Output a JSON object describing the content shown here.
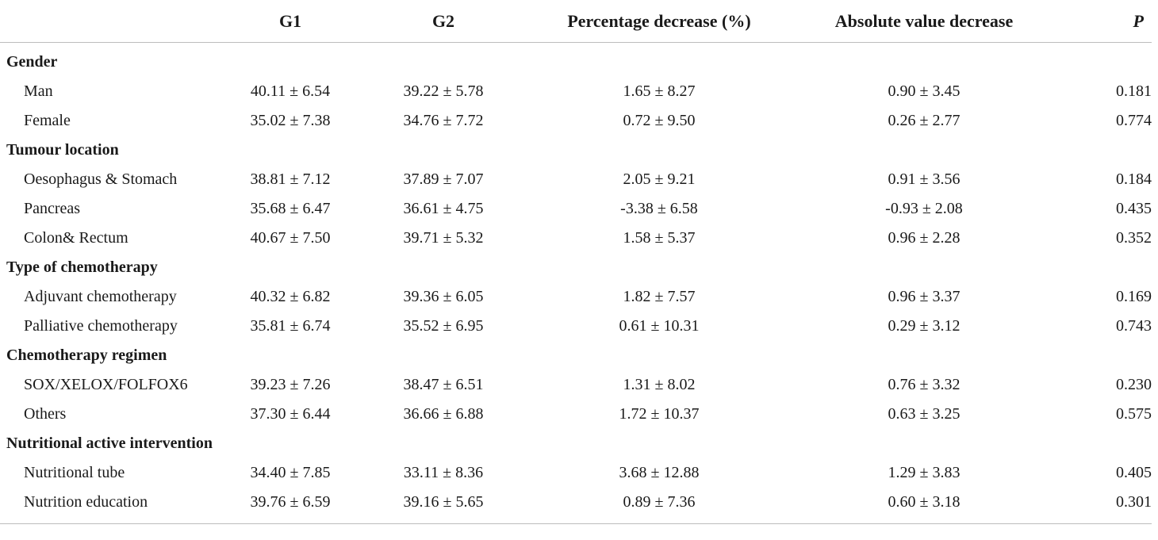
{
  "table": {
    "headers": [
      "",
      "G1",
      "G2",
      "Percentage decrease (%)",
      "Absolute value decrease",
      "P"
    ],
    "groups": [
      {
        "title": "Gender",
        "rows": [
          {
            "label": "Man",
            "g1": "40.11 ± 6.54",
            "g2": "39.22 ± 5.78",
            "pct": "1.65 ± 8.27",
            "abs": "0.90 ± 3.45",
            "p": "0.181"
          },
          {
            "label": "Female",
            "g1": "35.02 ± 7.38",
            "g2": "34.76 ± 7.72",
            "pct": "0.72 ± 9.50",
            "abs": "0.26 ± 2.77",
            "p": "0.774"
          }
        ]
      },
      {
        "title": "Tumour location",
        "rows": [
          {
            "label": "Oesophagus & Stomach",
            "g1": "38.81 ± 7.12",
            "g2": "37.89 ± 7.07",
            "pct": "2.05 ± 9.21",
            "abs": "0.91 ± 3.56",
            "p": "0.184"
          },
          {
            "label": "Pancreas",
            "g1": "35.68 ± 6.47",
            "g2": "36.61 ± 4.75",
            "pct": "-3.38 ± 6.58",
            "abs": "-0.93 ± 2.08",
            "p": "0.435"
          },
          {
            "label": "Colon& Rectum",
            "g1": "40.67 ± 7.50",
            "g2": "39.71 ± 5.32",
            "pct": "1.58 ± 5.37",
            "abs": "0.96 ± 2.28",
            "p": "0.352"
          }
        ]
      },
      {
        "title": "Type of chemotherapy",
        "rows": [
          {
            "label": "Adjuvant chemotherapy",
            "g1": "40.32 ± 6.82",
            "g2": "39.36 ± 6.05",
            "pct": "1.82 ± 7.57",
            "abs": "0.96 ± 3.37",
            "p": "0.169"
          },
          {
            "label": "Palliative chemotherapy",
            "g1": "35.81 ± 6.74",
            "g2": "35.52 ± 6.95",
            "pct": "0.61 ± 10.31",
            "abs": "0.29 ± 3.12",
            "p": "0.743"
          }
        ]
      },
      {
        "title": "Chemotherapy regimen",
        "rows": [
          {
            "label": "SOX/XELOX/FOLFOX6",
            "g1": "39.23 ± 7.26",
            "g2": "38.47 ± 6.51",
            "pct": "1.31 ± 8.02",
            "abs": "0.76 ± 3.32",
            "p": "0.230"
          },
          {
            "label": "Others",
            "g1": "37.30 ± 6.44",
            "g2": "36.66 ± 6.88",
            "pct": "1.72 ± 10.37",
            "abs": "0.63 ± 3.25",
            "p": "0.575"
          }
        ]
      },
      {
        "title": "Nutritional active intervention",
        "rows": [
          {
            "label": "Nutritional tube",
            "g1": "34.40 ± 7.85",
            "g2": "33.11 ± 8.36",
            "pct": "3.68 ± 12.88",
            "abs": "1.29 ± 3.83",
            "p": "0.405"
          },
          {
            "label": "Nutrition education",
            "g1": "39.76 ± 6.59",
            "g2": "39.16 ± 5.65",
            "pct": "0.89 ± 7.36",
            "abs": "0.60 ± 3.18",
            "p": "0.301"
          }
        ]
      }
    ]
  }
}
